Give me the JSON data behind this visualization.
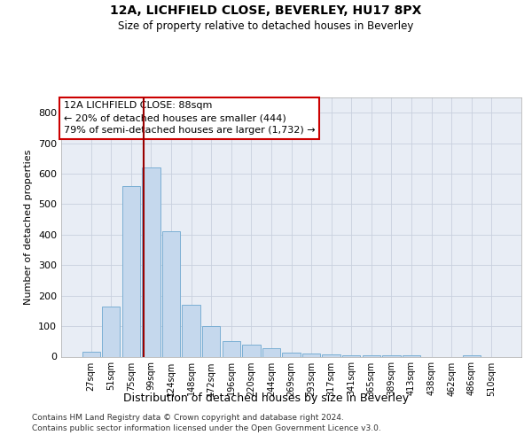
{
  "title_line1": "12A, LICHFIELD CLOSE, BEVERLEY, HU17 8PX",
  "title_line2": "Size of property relative to detached houses in Beverley",
  "xlabel": "Distribution of detached houses by size in Beverley",
  "ylabel": "Number of detached properties",
  "footnote1": "Contains HM Land Registry data © Crown copyright and database right 2024.",
  "footnote2": "Contains public sector information licensed under the Open Government Licence v3.0.",
  "bar_labels": [
    "27sqm",
    "51sqm",
    "75sqm",
    "99sqm",
    "124sqm",
    "148sqm",
    "172sqm",
    "196sqm",
    "220sqm",
    "244sqm",
    "269sqm",
    "293sqm",
    "317sqm",
    "341sqm",
    "365sqm",
    "389sqm",
    "413sqm",
    "438sqm",
    "462sqm",
    "486sqm",
    "510sqm"
  ],
  "bar_values": [
    15,
    165,
    560,
    620,
    410,
    170,
    100,
    50,
    38,
    28,
    12,
    10,
    8,
    5,
    5,
    5,
    3,
    0,
    0,
    5,
    0
  ],
  "bar_color": "#c5d8ed",
  "bar_edge_color": "#7bafd4",
  "grid_color": "#c8d0de",
  "background_color": "#e8edf5",
  "vline_x": 2.62,
  "vline_color": "#990000",
  "annotation_line1": "12A LICHFIELD CLOSE: 88sqm",
  "annotation_line2": "← 20% of detached houses are smaller (444)",
  "annotation_line3": "79% of semi-detached houses are larger (1,732) →",
  "ylim": [
    0,
    850
  ],
  "yticks": [
    0,
    100,
    200,
    300,
    400,
    500,
    600,
    700,
    800
  ]
}
